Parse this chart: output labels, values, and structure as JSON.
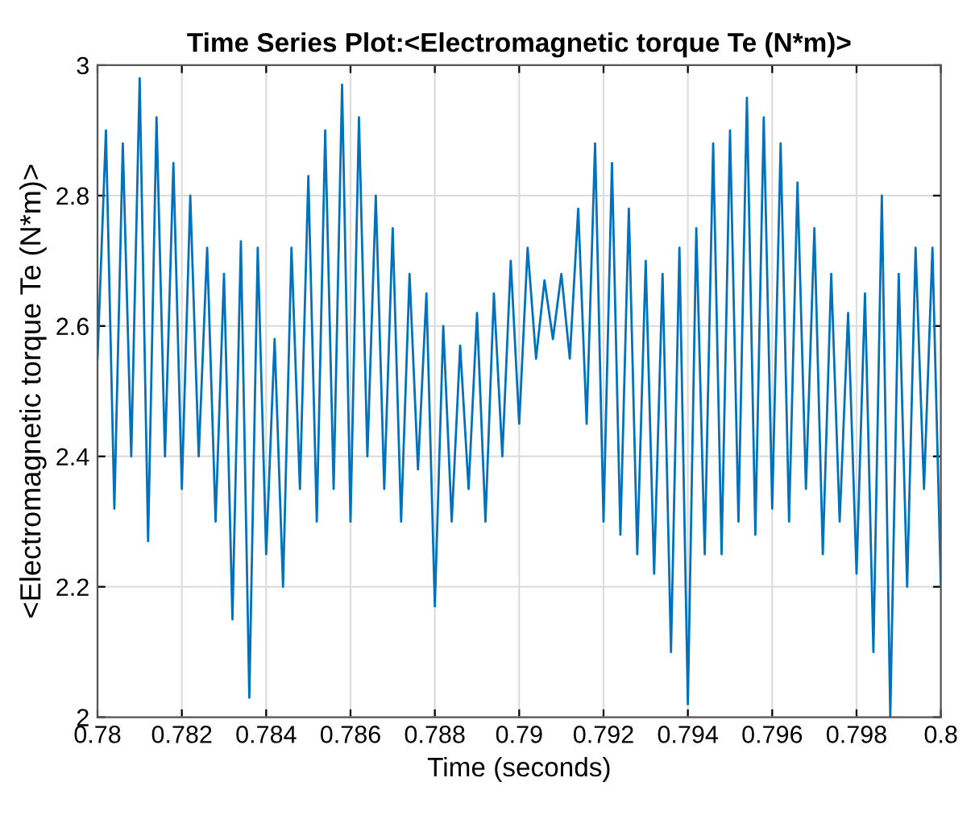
{
  "chart_data": {
    "type": "line",
    "title": "Time Series Plot:<Electromagnetic torque Te (N*m)>",
    "xlabel": "Time (seconds)",
    "ylabel": "<Electromagnetic torque Te (N*m)>",
    "x": [
      0.78,
      0.7802,
      0.7804,
      0.7806,
      0.7808,
      0.781,
      0.7812,
      0.7814,
      0.7816,
      0.7818,
      0.782,
      0.7822,
      0.7824,
      0.7826,
      0.7828,
      0.783,
      0.7832,
      0.7834,
      0.7836,
      0.7838,
      0.784,
      0.7842,
      0.7844,
      0.7846,
      0.7848,
      0.785,
      0.7852,
      0.7854,
      0.7856,
      0.7858,
      0.786,
      0.7862,
      0.7864,
      0.7866,
      0.7868,
      0.787,
      0.7872,
      0.7874,
      0.7876,
      0.7878,
      0.788,
      0.7882,
      0.7884,
      0.7886,
      0.7888,
      0.789,
      0.7892,
      0.7894,
      0.7896,
      0.7898,
      0.79,
      0.7902,
      0.7904,
      0.7906,
      0.7908,
      0.791,
      0.7912,
      0.7914,
      0.7916,
      0.7918,
      0.792,
      0.7922,
      0.7924,
      0.7926,
      0.7928,
      0.793,
      0.7932,
      0.7934,
      0.7936,
      0.7938,
      0.794,
      0.7942,
      0.7944,
      0.7946,
      0.7948,
      0.795,
      0.7952,
      0.7954,
      0.7956,
      0.7958,
      0.796,
      0.7962,
      0.7964,
      0.7966,
      0.7968,
      0.797,
      0.7972,
      0.7974,
      0.7976,
      0.7978,
      0.798,
      0.7982,
      0.7984,
      0.7986,
      0.7988,
      0.799,
      0.7992,
      0.7994,
      0.7996,
      0.7998,
      0.8
    ],
    "series": [
      {
        "color": "#0072bd",
        "values": [
          2.55,
          2.9,
          2.32,
          2.88,
          2.4,
          2.98,
          2.27,
          2.92,
          2.4,
          2.85,
          2.35,
          2.8,
          2.4,
          2.72,
          2.3,
          2.68,
          2.15,
          2.73,
          2.03,
          2.72,
          2.25,
          2.58,
          2.2,
          2.72,
          2.35,
          2.83,
          2.3,
          2.9,
          2.35,
          2.97,
          2.3,
          2.92,
          2.4,
          2.8,
          2.35,
          2.75,
          2.3,
          2.68,
          2.38,
          2.65,
          2.17,
          2.6,
          2.3,
          2.57,
          2.35,
          2.62,
          2.3,
          2.65,
          2.4,
          2.7,
          2.45,
          2.72,
          2.55,
          2.67,
          2.58,
          2.68,
          2.55,
          2.78,
          2.45,
          2.88,
          2.3,
          2.85,
          2.28,
          2.78,
          2.25,
          2.7,
          2.22,
          2.68,
          2.1,
          2.72,
          2.02,
          2.75,
          2.25,
          2.88,
          2.25,
          2.9,
          2.3,
          2.95,
          2.28,
          2.92,
          2.32,
          2.88,
          2.3,
          2.82,
          2.35,
          2.75,
          2.25,
          2.68,
          2.3,
          2.62,
          2.22,
          2.65,
          2.1,
          2.8,
          2.0,
          2.68,
          2.2,
          2.72,
          2.35,
          2.72,
          2.2
        ]
      }
    ],
    "xlim": [
      0.78,
      0.8
    ],
    "xticks": [
      0.78,
      0.782,
      0.784,
      0.786,
      0.788,
      0.79,
      0.792,
      0.794,
      0.796,
      0.798,
      0.8
    ],
    "ylim": [
      2,
      3
    ],
    "yticks": [
      2,
      2.2,
      2.4,
      2.6,
      2.8,
      3
    ],
    "grid": true
  }
}
